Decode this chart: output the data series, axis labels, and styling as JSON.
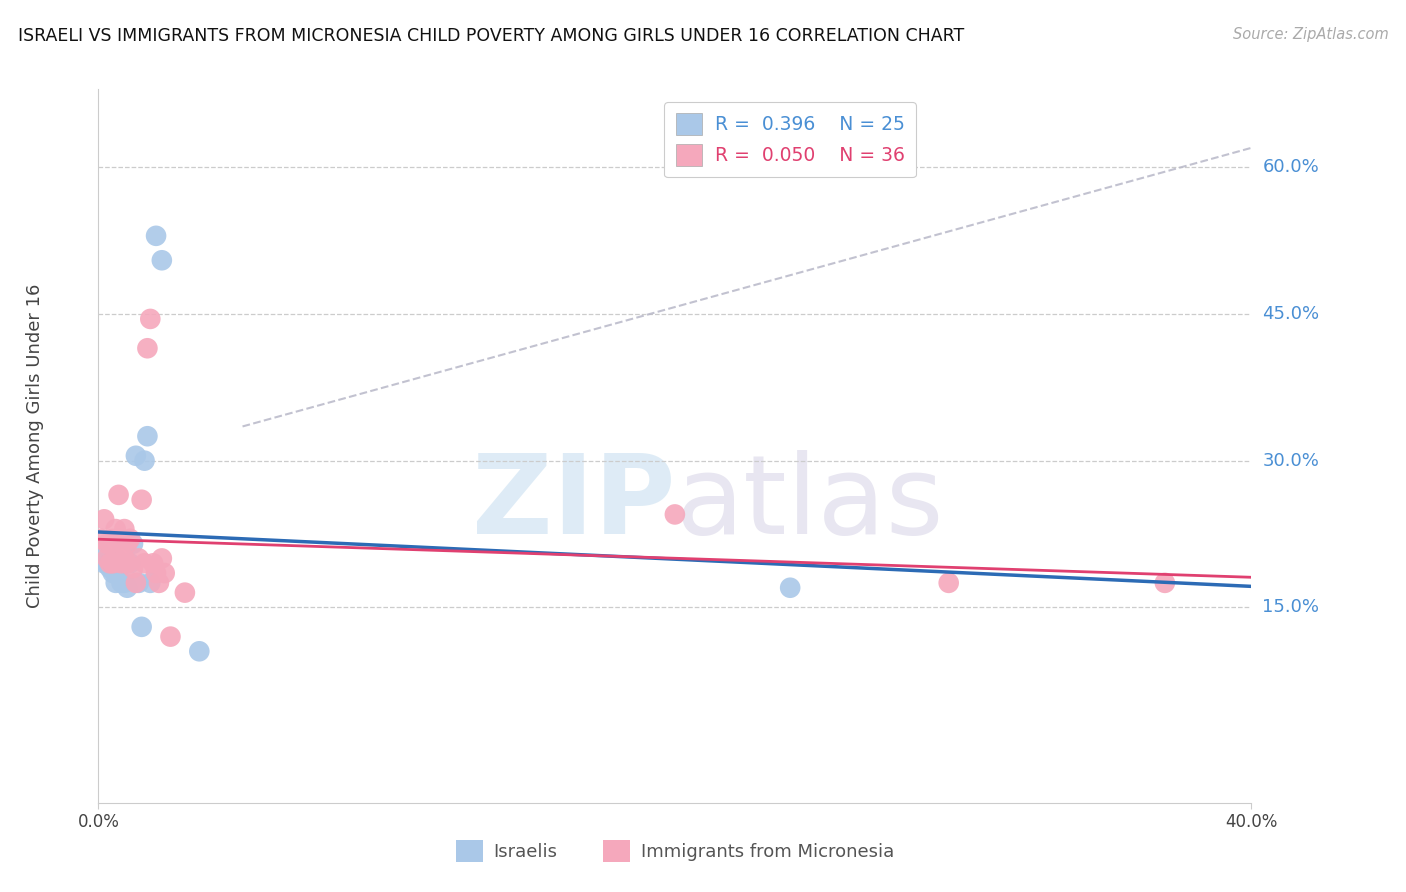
{
  "title": "ISRAELI VS IMMIGRANTS FROM MICRONESIA CHILD POVERTY AMONG GIRLS UNDER 16 CORRELATION CHART",
  "source": "Source: ZipAtlas.com",
  "ylabel": "Child Poverty Among Girls Under 16",
  "ytick_values": [
    0.6,
    0.45,
    0.3,
    0.15
  ],
  "ytick_labels": [
    "60.0%",
    "45.0%",
    "30.0%",
    "15.0%"
  ],
  "xlim": [
    0.0,
    0.4
  ],
  "ylim": [
    -0.05,
    0.68
  ],
  "R_israeli": "0.396",
  "N_israeli": "25",
  "R_micronesia": "0.050",
  "N_micronesia": "36",
  "label_israelis": "Israelis",
  "label_micronesia": "Immigrants from Micronesia",
  "color_israeli_scatter": "#aac8e8",
  "color_micronesia_scatter": "#f5a8bc",
  "color_israeli_line": "#2c6bb5",
  "color_micronesia_line": "#e04070",
  "color_grid": "#cccccc",
  "color_right_labels": "#4a8fd4",
  "israeli_x": [
    0.001,
    0.002,
    0.003,
    0.004,
    0.005,
    0.006,
    0.006,
    0.007,
    0.008,
    0.008,
    0.009,
    0.009,
    0.01,
    0.011,
    0.012,
    0.013,
    0.014,
    0.015,
    0.016,
    0.017,
    0.018,
    0.02,
    0.022,
    0.035,
    0.24
  ],
  "israeli_y": [
    0.205,
    0.195,
    0.195,
    0.19,
    0.185,
    0.2,
    0.175,
    0.22,
    0.195,
    0.175,
    0.195,
    0.175,
    0.17,
    0.195,
    0.215,
    0.305,
    0.175,
    0.13,
    0.3,
    0.325,
    0.175,
    0.53,
    0.505,
    0.105,
    0.17
  ],
  "micronesia_x": [
    0.001,
    0.002,
    0.003,
    0.003,
    0.004,
    0.004,
    0.005,
    0.005,
    0.006,
    0.006,
    0.007,
    0.007,
    0.008,
    0.008,
    0.009,
    0.009,
    0.01,
    0.01,
    0.011,
    0.012,
    0.013,
    0.014,
    0.015,
    0.016,
    0.017,
    0.018,
    0.019,
    0.02,
    0.021,
    0.022,
    0.023,
    0.025,
    0.03,
    0.2,
    0.295,
    0.37
  ],
  "micronesia_y": [
    0.22,
    0.24,
    0.215,
    0.2,
    0.215,
    0.195,
    0.22,
    0.195,
    0.23,
    0.2,
    0.265,
    0.22,
    0.215,
    0.195,
    0.23,
    0.2,
    0.215,
    0.195,
    0.22,
    0.19,
    0.175,
    0.2,
    0.26,
    0.195,
    0.415,
    0.445,
    0.195,
    0.185,
    0.175,
    0.2,
    0.185,
    0.12,
    0.165,
    0.245,
    0.175,
    0.175
  ],
  "dashed_line_x": [
    0.05,
    0.4
  ],
  "dashed_line_y": [
    0.335,
    0.62
  ]
}
